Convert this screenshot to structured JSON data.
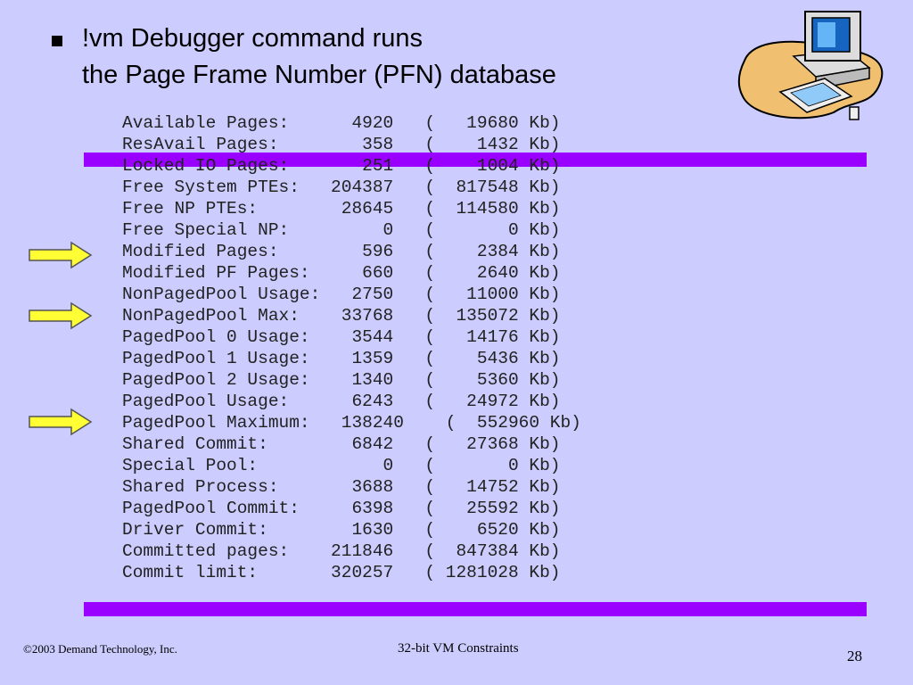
{
  "slide": {
    "title_lines": [
      "!vm Debugger command runs",
      "the Page Frame Number (PFN) database"
    ],
    "output_lines": [
      "Available Pages:      4920   (   19680 Kb)",
      "ResAvail Pages:        358   (    1432 Kb)",
      "Locked IO Pages:       251   (    1004 Kb)",
      "Free System PTEs:   204387   (  817548 Kb)",
      "Free NP PTEs:        28645   (  114580 Kb)",
      "Free Special NP:         0   (       0 Kb)",
      "Modified Pages:        596   (    2384 Kb)",
      "Modified PF Pages:     660   (    2640 Kb)",
      "NonPagedPool Usage:   2750   (   11000 Kb)",
      "NonPagedPool Max:    33768   (  135072 Kb)",
      "PagedPool 0 Usage:    3544   (   14176 Kb)",
      "PagedPool 1 Usage:    1359   (    5436 Kb)",
      "PagedPool 2 Usage:    1340   (    5360 Kb)",
      "PagedPool Usage:      6243   (   24972 Kb)",
      "PagedPool Maximum:   138240    (  552960 Kb)",
      "Shared Commit:        6842   (   27368 Kb)",
      "Special Pool:            0   (       0 Kb)",
      "Shared Process:       3688   (   14752 Kb)",
      "PagedPool Commit:     6398   (   25592 Kb)",
      "Driver Commit:        1630   (    6520 Kb)",
      "Committed pages:    211846   (  847384 Kb)",
      "Commit limit:       320257   ( 1281028 Kb)"
    ],
    "footer": {
      "copyright": "©2003 Demand Technology, Inc.",
      "center": "32-bit VM Constraints",
      "page": "28"
    }
  }
}
